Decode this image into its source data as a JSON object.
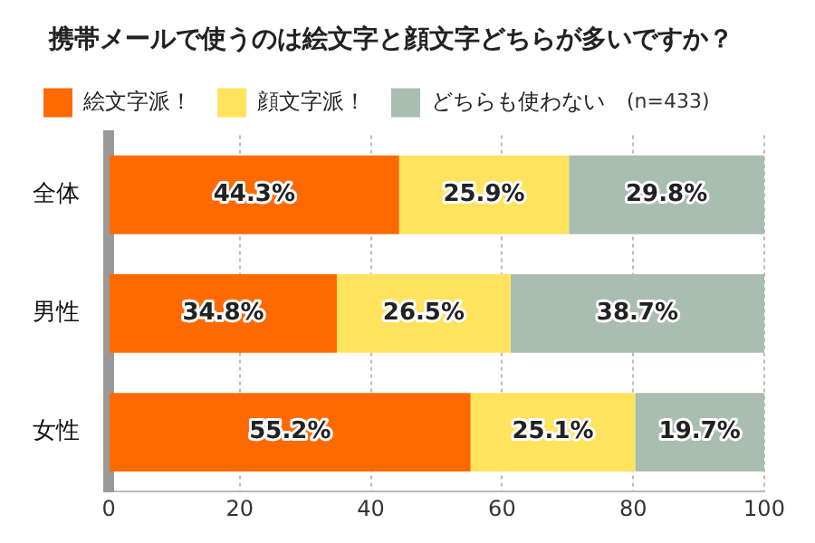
{
  "chart_data": {
    "type": "bar",
    "orientation": "horizontal",
    "stacked": true,
    "title": "携帯メールで使うのは絵文字と顔文字どちらが多いですか？",
    "categories": [
      "全体",
      "男性",
      "女性"
    ],
    "series": [
      {
        "name": "絵文字派！",
        "color": "#ff6a00",
        "values": [
          44.3,
          34.8,
          55.2
        ],
        "value_labels": [
          "44.3%",
          "34.8%",
          "55.2%"
        ]
      },
      {
        "name": "顔文字派！",
        "color": "#ffe35e",
        "values": [
          25.9,
          26.5,
          25.1
        ],
        "value_labels": [
          "25.9%",
          "26.5%",
          "25.1%"
        ]
      },
      {
        "name": "どちらも使わない",
        "color": "#a9bdb1",
        "values": [
          29.8,
          38.7,
          19.7
        ],
        "value_labels": [
          "29.8%",
          "38.7%",
          "19.7%"
        ]
      }
    ],
    "xlim": [
      0,
      100
    ],
    "xticks": [
      0,
      20,
      40,
      60,
      80,
      100
    ],
    "grid": "x",
    "legend": "top",
    "annotations": [
      "(n=433)"
    ]
  }
}
